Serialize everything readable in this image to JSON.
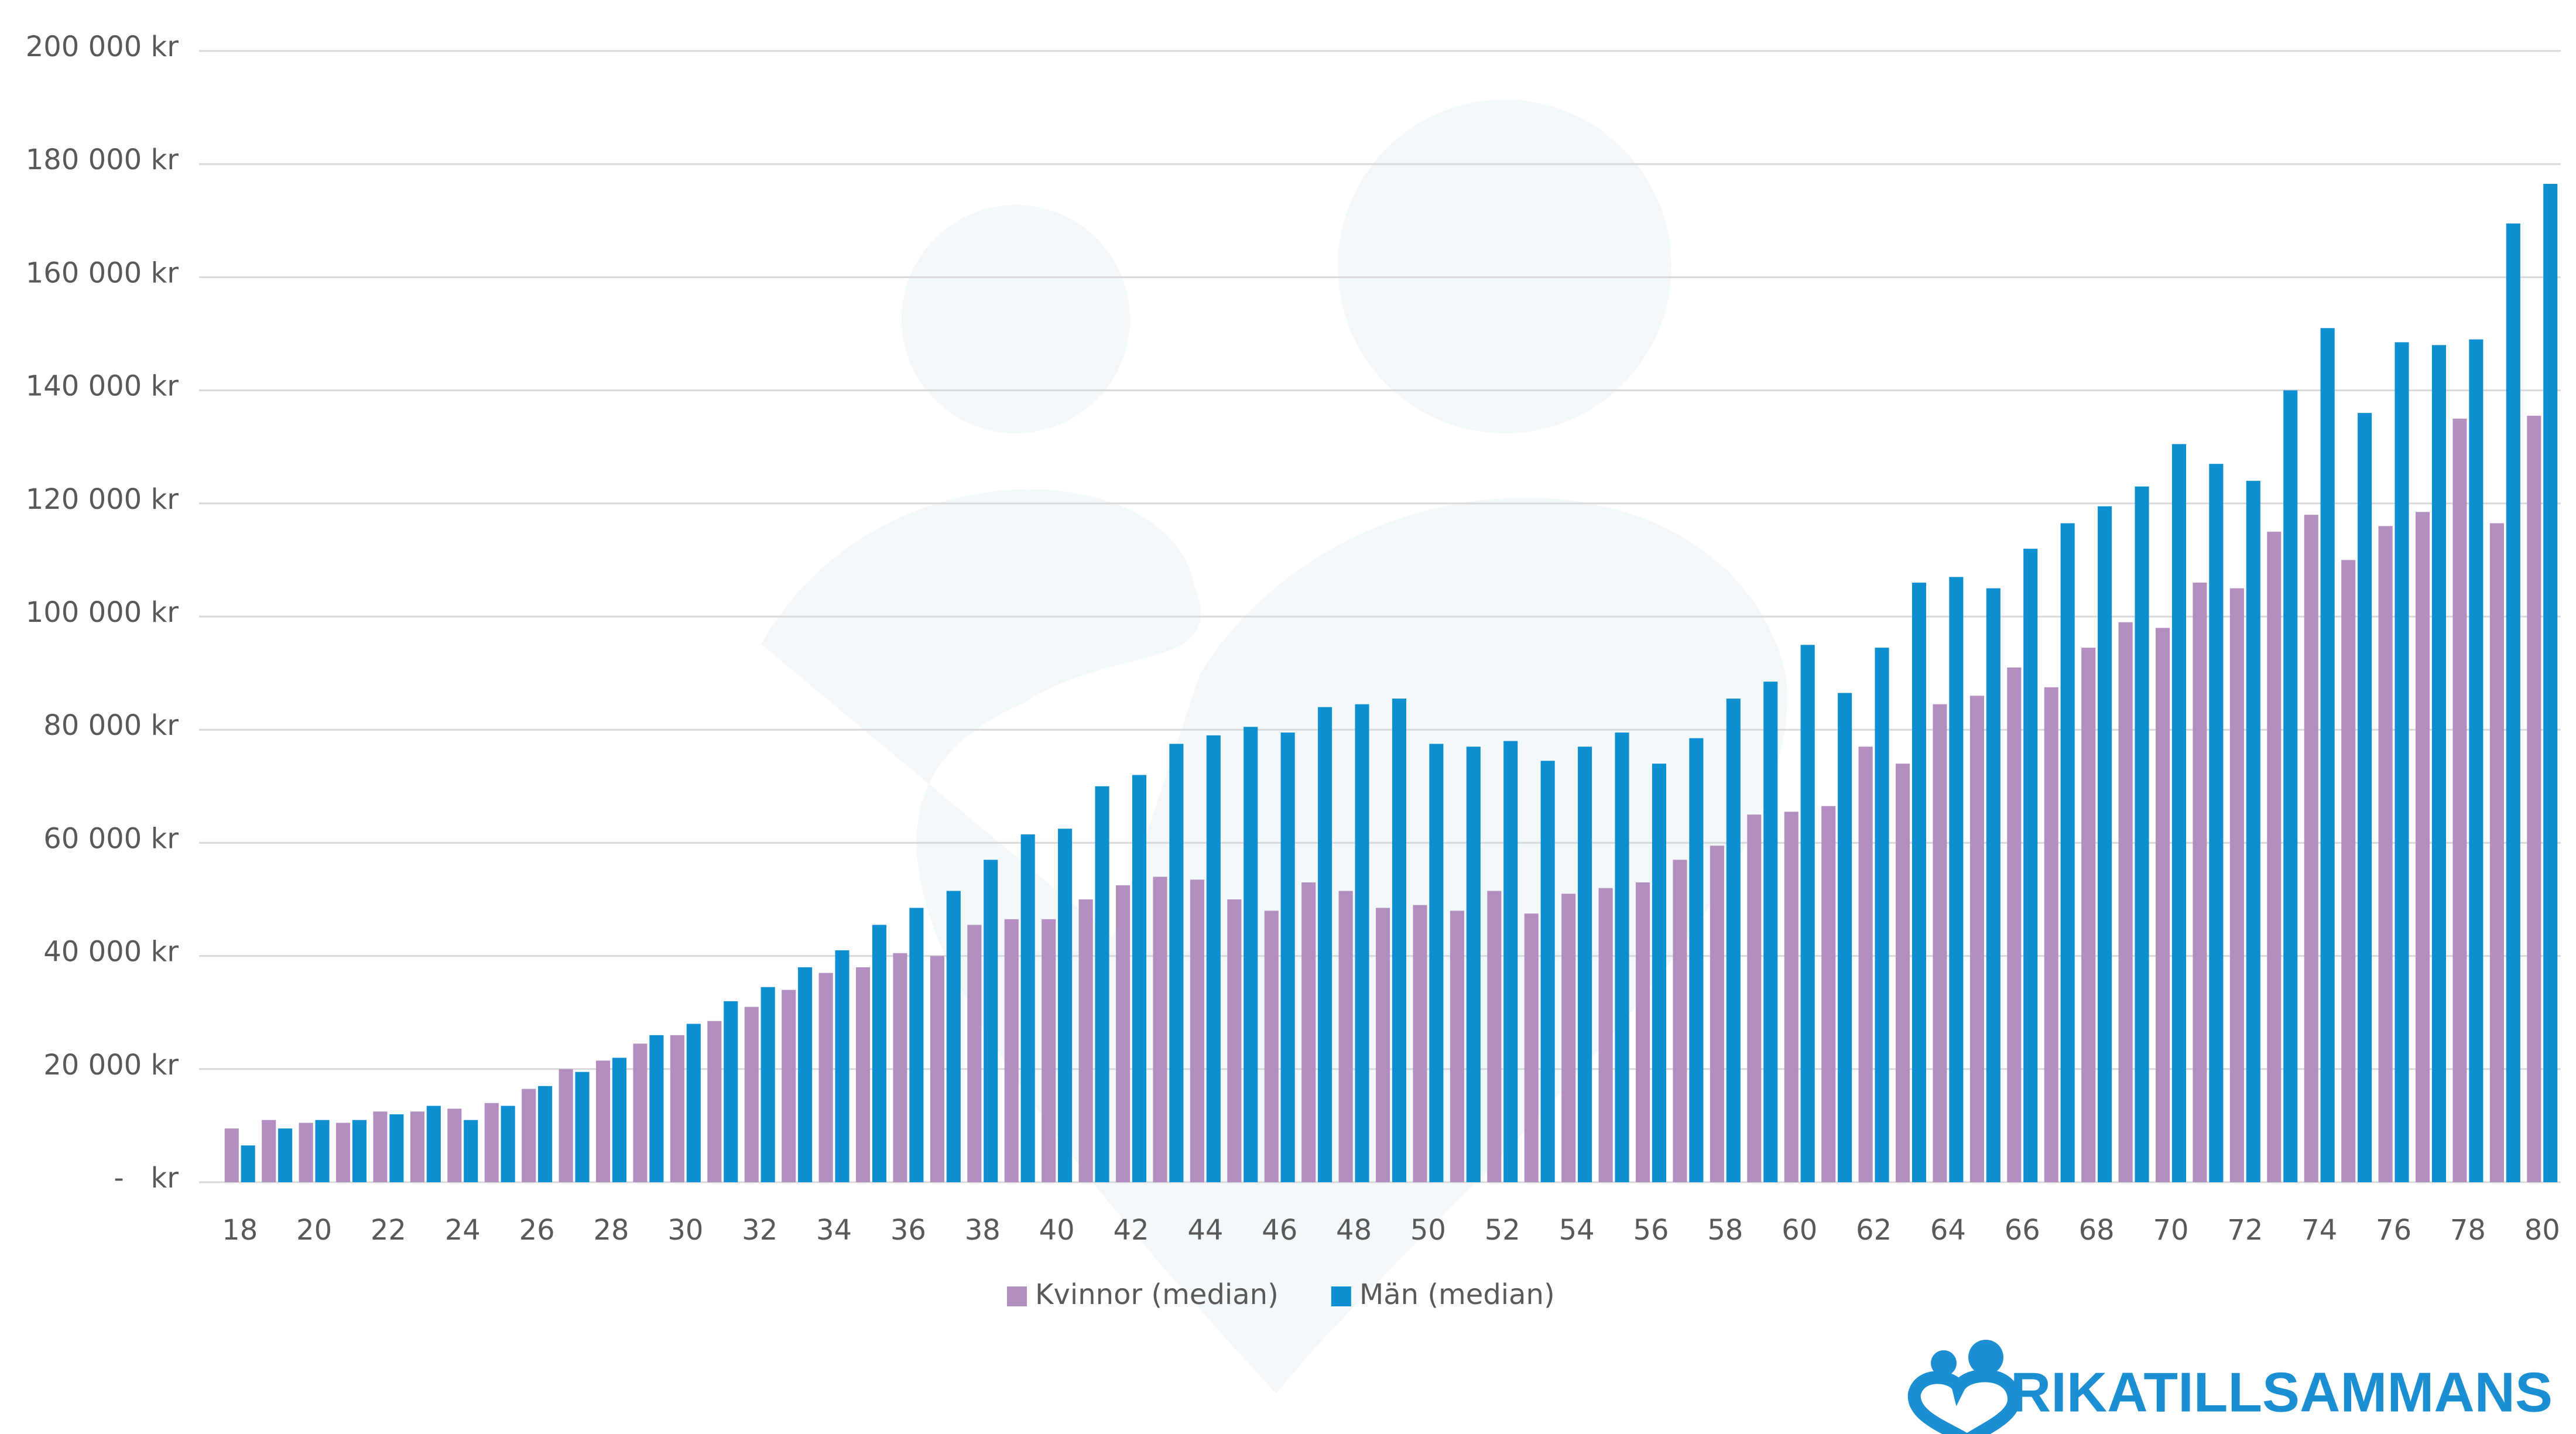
{
  "chart_data": {
    "type": "bar",
    "categories": [
      "18",
      null,
      "20",
      null,
      "22",
      null,
      "24",
      null,
      "26",
      null,
      "28",
      null,
      "30",
      null,
      "32",
      null,
      "34",
      null,
      "36",
      null,
      "38",
      null,
      "40",
      null,
      "42",
      null,
      "44",
      null,
      "46",
      null,
      "48",
      null,
      "50",
      null,
      "52",
      null,
      "54",
      null,
      "56",
      null,
      "58",
      null,
      "60",
      null,
      "62",
      null,
      "64",
      null,
      "66",
      null,
      "68",
      null,
      "70",
      null,
      "72",
      null,
      "74",
      null,
      "76",
      null,
      "78",
      null,
      "80"
    ],
    "series": [
      {
        "name": "Kvinnor (median)",
        "color": "#b38fc1",
        "values": [
          9500,
          11000,
          10500,
          10500,
          12500,
          12500,
          13000,
          14000,
          16500,
          20000,
          21500,
          24500,
          26000,
          28500,
          31000,
          34000,
          37000,
          38000,
          40500,
          40000,
          45500,
          46500,
          46500,
          50000,
          52500,
          54000,
          53500,
          50000,
          48000,
          53000,
          51500,
          48500,
          49000,
          48000,
          51500,
          47500,
          51000,
          52000,
          53000,
          57000,
          59500,
          65000,
          65500,
          66500,
          77000,
          74000,
          84500,
          86000,
          91000,
          87500,
          94500,
          99000,
          98000,
          106000,
          105000,
          115000,
          118000,
          110000,
          116000,
          118500,
          135000,
          116500,
          135500
        ]
      },
      {
        "name": "Män (median)",
        "color": "#0e8fd2",
        "values": [
          6500,
          9500,
          11000,
          11000,
          12000,
          13500,
          11000,
          13500,
          17000,
          19500,
          22000,
          26000,
          28000,
          32000,
          34500,
          38000,
          41000,
          45500,
          48500,
          51500,
          57000,
          61500,
          62500,
          70000,
          72000,
          77500,
          79000,
          80500,
          79500,
          84000,
          84500,
          85500,
          77500,
          77000,
          78000,
          74500,
          77000,
          79500,
          74000,
          78500,
          85500,
          88500,
          95000,
          86500,
          94500,
          106000,
          107000,
          105000,
          112000,
          116500,
          119500,
          123000,
          130500,
          127000,
          124000,
          140000,
          151000,
          136000,
          148500,
          148000,
          149000,
          169500,
          176500
        ]
      }
    ],
    "ylim": [
      0,
      200000
    ],
    "yticks": [
      {
        "value": 0,
        "label": "-   kr"
      },
      {
        "value": 20000,
        "label": "20 000 kr"
      },
      {
        "value": 40000,
        "label": "40 000 kr"
      },
      {
        "value": 60000,
        "label": "60 000 kr"
      },
      {
        "value": 80000,
        "label": "80 000 kr"
      },
      {
        "value": 100000,
        "label": "100 000 kr"
      },
      {
        "value": 120000,
        "label": "120 000 kr"
      },
      {
        "value": 140000,
        "label": "140 000 kr"
      },
      {
        "value": 160000,
        "label": "160 000 kr"
      },
      {
        "value": 180000,
        "label": "180 000 kr"
      },
      {
        "value": 200000,
        "label": "200 000 kr"
      }
    ],
    "grid": true,
    "legend": "bottom"
  },
  "brand": "RIKATILLSAMMANS"
}
